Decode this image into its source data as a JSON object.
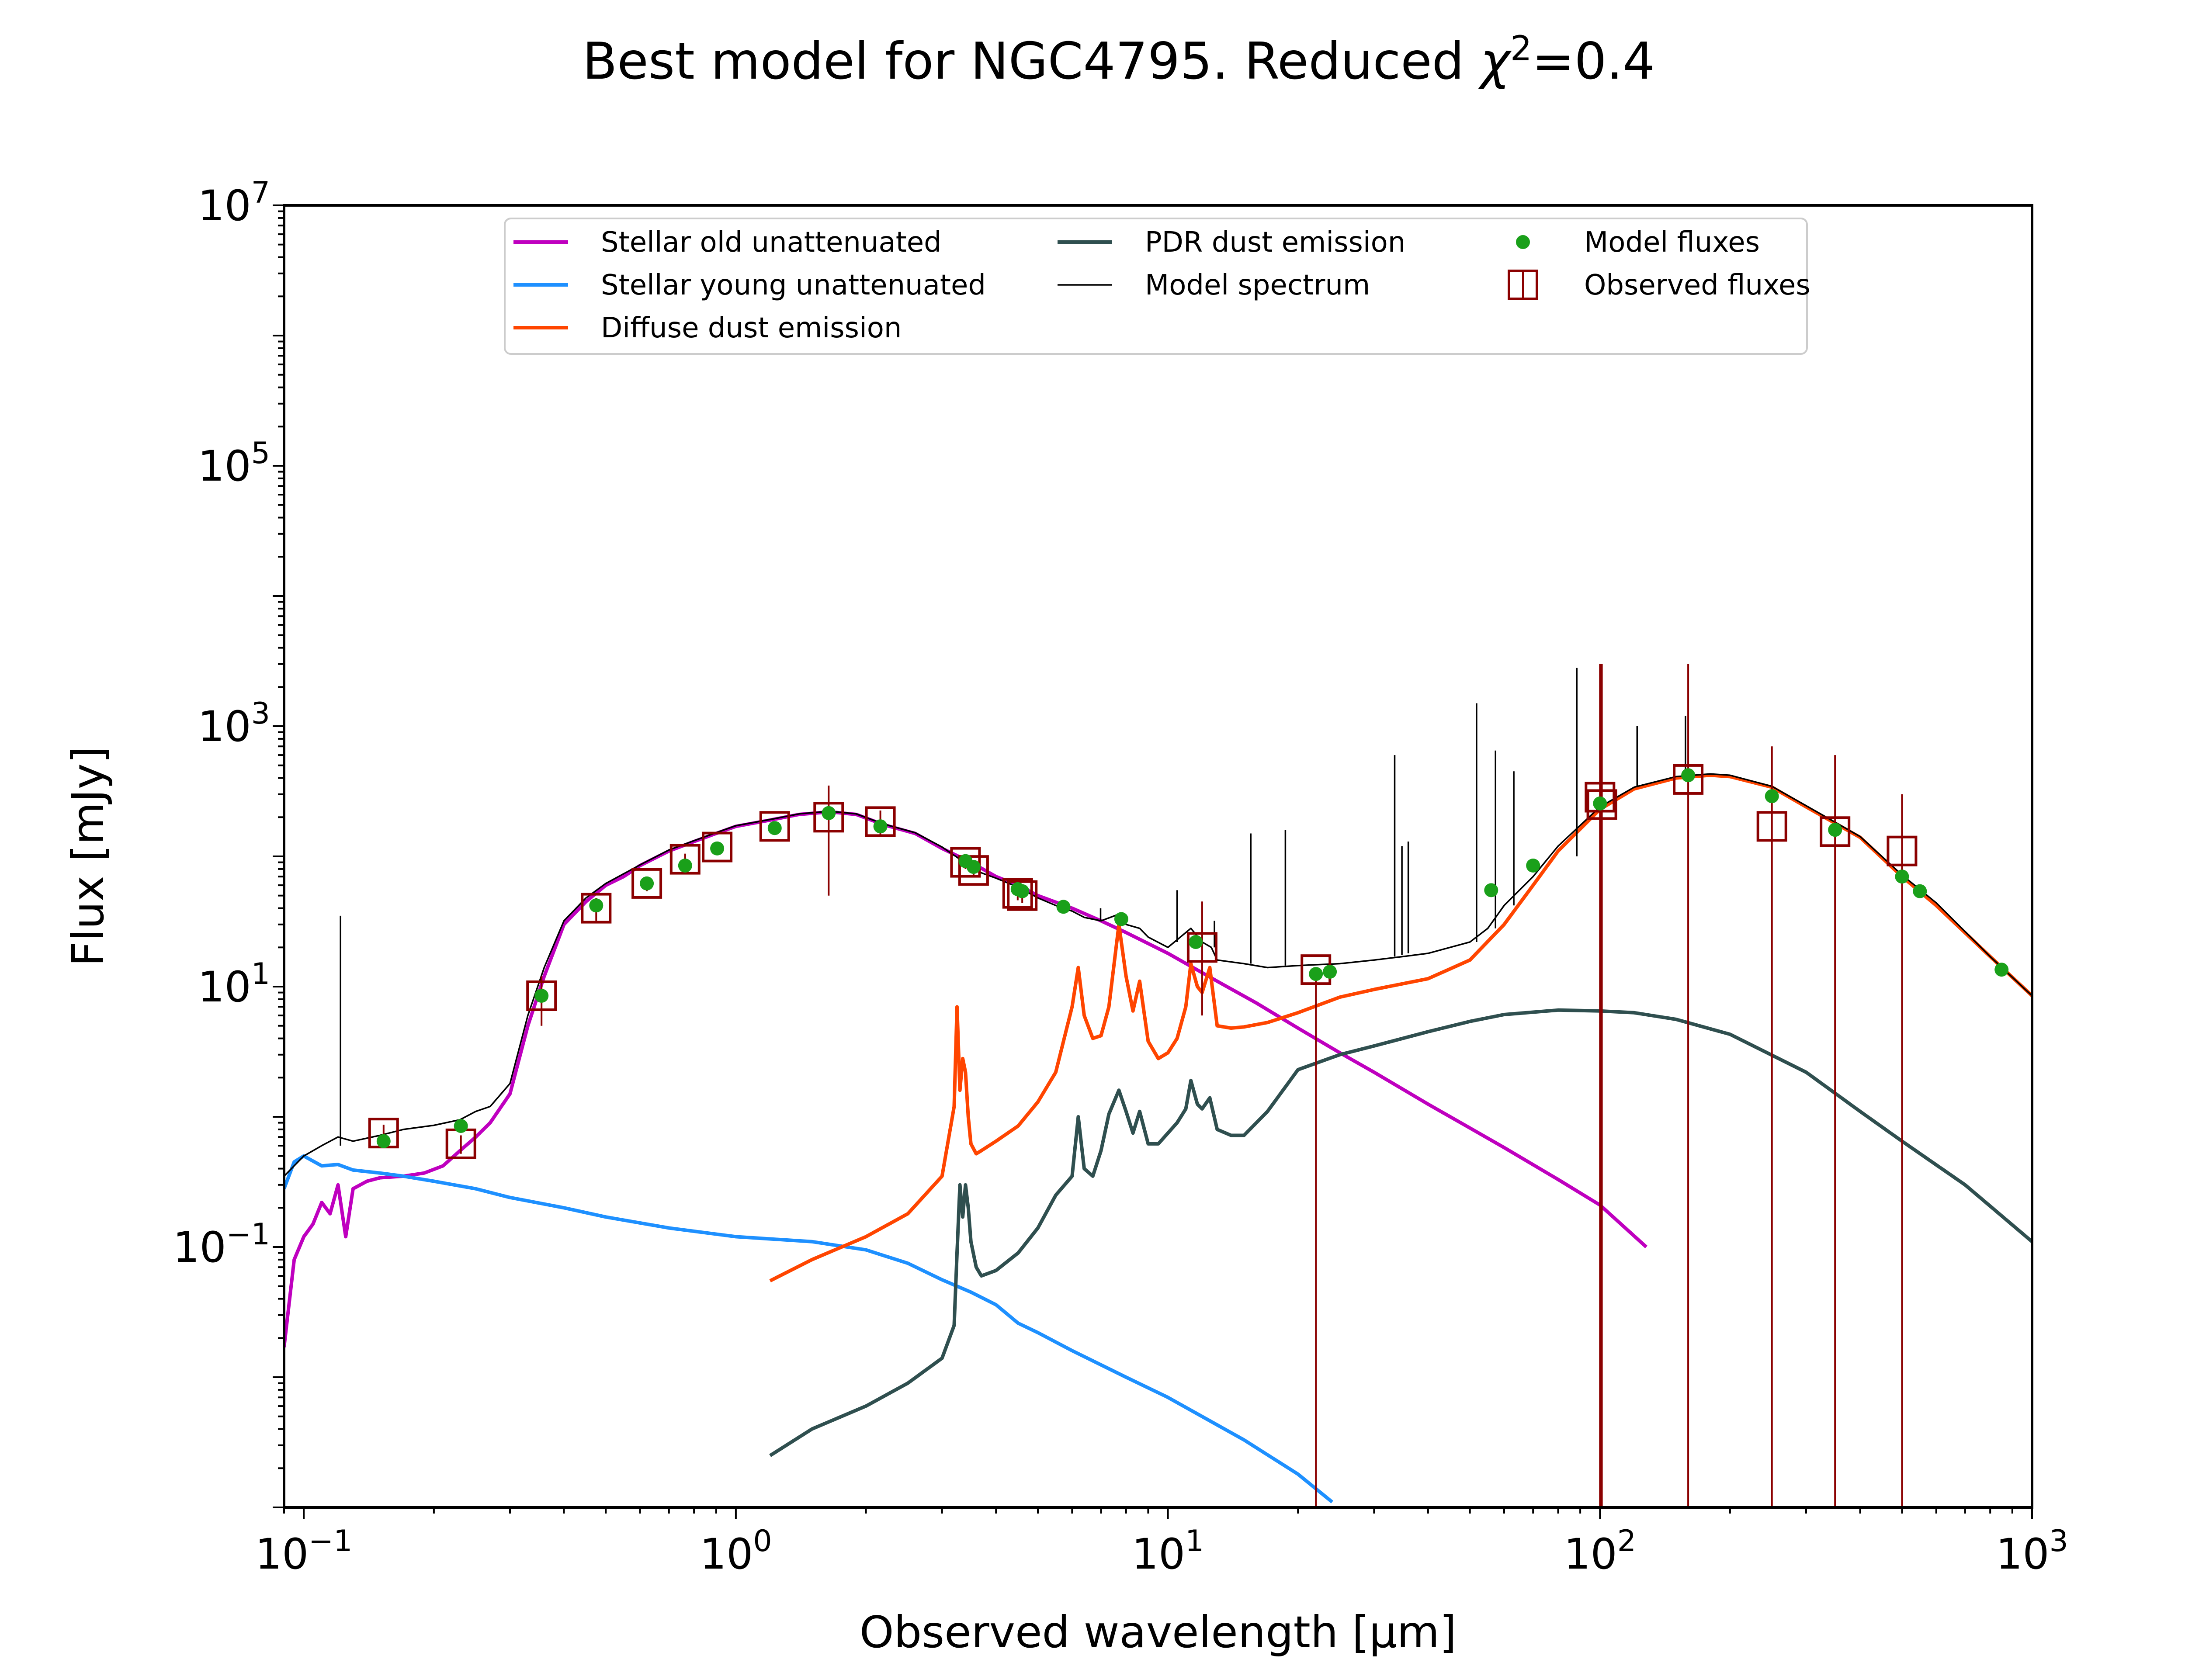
{
  "chart_data": {
    "type": "line",
    "title": "Best model for NGC4795. Reduced χ²=0.4",
    "title_parts": {
      "prefix": "Best model for NGC4795. Reduced ",
      "chi": "χ",
      "sup": "2",
      "suffix": "=0.4"
    },
    "xlabel": "Observed wavelength [μm]",
    "ylabel": "Flux [mJy]",
    "xscale": "log",
    "yscale": "log",
    "xlim": [
      0.09,
      1000
    ],
    "ylim": [
      0.001,
      10000000
    ],
    "x_ticks": [
      {
        "value": 0.1,
        "base": "10",
        "exp": "−1"
      },
      {
        "value": 1,
        "base": "10",
        "exp": "0"
      },
      {
        "value": 10,
        "base": "10",
        "exp": "1"
      },
      {
        "value": 100,
        "base": "10",
        "exp": "2"
      },
      {
        "value": 1000,
        "base": "10",
        "exp": "3"
      }
    ],
    "y_ticks": [
      {
        "value": 0.1,
        "base": "10",
        "exp": "−1"
      },
      {
        "value": 10,
        "base": "10",
        "exp": "1"
      },
      {
        "value": 1000,
        "base": "10",
        "exp": "3"
      },
      {
        "value": 100000,
        "base": "10",
        "exp": "5"
      },
      {
        "value": 10000000,
        "base": "10",
        "exp": "7"
      }
    ],
    "grid": false,
    "legend_position": "top",
    "series": [
      {
        "name": "Stellar old unattenuated",
        "kind": "line",
        "color": "#bf00bf",
        "x": [
          0.09,
          0.095,
          0.1,
          0.105,
          0.11,
          0.115,
          0.12,
          0.125,
          0.13,
          0.14,
          0.15,
          0.17,
          0.19,
          0.21,
          0.23,
          0.25,
          0.27,
          0.3,
          0.33,
          0.36,
          0.4,
          0.45,
          0.5,
          0.55,
          0.6,
          0.7,
          0.8,
          0.9,
          1.0,
          1.2,
          1.4,
          1.65,
          1.9,
          2.2,
          2.6,
          3.0,
          3.5,
          4.0,
          4.5,
          5.0,
          6.0,
          7.0,
          8.0,
          10,
          13,
          16,
          20,
          25,
          30,
          40,
          50,
          60,
          80,
          100,
          128
        ],
        "y": [
          0.017,
          0.08,
          0.12,
          0.15,
          0.22,
          0.18,
          0.3,
          0.12,
          0.28,
          0.32,
          0.34,
          0.35,
          0.37,
          0.42,
          0.55,
          0.7,
          0.9,
          1.5,
          5.0,
          12,
          30,
          45,
          60,
          70,
          85,
          110,
          130,
          150,
          170,
          190,
          210,
          220,
          210,
          175,
          150,
          115,
          90,
          70,
          60,
          50,
          40,
          32,
          26,
          18,
          11,
          7.5,
          4.8,
          3.1,
          2.2,
          1.25,
          0.82,
          0.58,
          0.33,
          0.21,
          0.1
        ]
      },
      {
        "name": "Stellar young unattenuated",
        "kind": "line",
        "color": "#1e90ff",
        "x": [
          0.09,
          0.095,
          0.1,
          0.11,
          0.12,
          0.13,
          0.15,
          0.17,
          0.2,
          0.25,
          0.3,
          0.4,
          0.5,
          0.7,
          1.0,
          1.5,
          2.0,
          2.5,
          3.0,
          3.5,
          4.0,
          4.5,
          5.0,
          6.0,
          8.0,
          10,
          15,
          20,
          24
        ],
        "y": [
          0.28,
          0.45,
          0.5,
          0.42,
          0.43,
          0.39,
          0.37,
          0.35,
          0.32,
          0.28,
          0.24,
          0.2,
          0.17,
          0.14,
          0.12,
          0.11,
          0.095,
          0.075,
          0.056,
          0.045,
          0.036,
          0.026,
          0.022,
          0.016,
          0.01,
          0.007,
          0.0033,
          0.0018,
          0.0011
        ]
      },
      {
        "name": "Diffuse dust emission",
        "kind": "line",
        "color": "#ff4500",
        "x": [
          1.2,
          1.5,
          2.0,
          2.5,
          3.0,
          3.2,
          3.25,
          3.3,
          3.35,
          3.4,
          3.45,
          3.5,
          3.6,
          3.7,
          4.0,
          4.5,
          5.0,
          5.5,
          6.0,
          6.2,
          6.4,
          6.7,
          7.0,
          7.3,
          7.7,
          8.0,
          8.3,
          8.6,
          9.0,
          9.5,
          10.0,
          10.5,
          11.0,
          11.3,
          11.7,
          12.0,
          12.5,
          13.0,
          14.0,
          15,
          17,
          20,
          25,
          30,
          40,
          50,
          60,
          70,
          80,
          100,
          120,
          150,
          180,
          200,
          250,
          300,
          400,
          500,
          600,
          800,
          1000
        ],
        "y": [
          0.055,
          0.08,
          0.12,
          0.18,
          0.35,
          1.2,
          7.0,
          1.6,
          2.8,
          2.2,
          1.0,
          0.62,
          0.52,
          0.55,
          0.65,
          0.85,
          1.3,
          2.2,
          7.0,
          14,
          6.0,
          4.0,
          4.2,
          7.0,
          30,
          12,
          6.5,
          11,
          3.8,
          2.8,
          3.1,
          4.0,
          7.0,
          15,
          10,
          9.0,
          14,
          5.0,
          4.8,
          4.9,
          5.3,
          6.3,
          8.3,
          9.5,
          11.5,
          16,
          30,
          60,
          110,
          230,
          330,
          400,
          420,
          410,
          340,
          240,
          140,
          70,
          42,
          17,
          8.5
        ]
      },
      {
        "name": "PDR dust emission",
        "kind": "line",
        "color": "#2f4f4f",
        "x": [
          1.2,
          1.5,
          2.0,
          2.5,
          3.0,
          3.2,
          3.25,
          3.3,
          3.35,
          3.4,
          3.45,
          3.5,
          3.6,
          3.7,
          4.0,
          4.5,
          5.0,
          5.5,
          6.0,
          6.2,
          6.4,
          6.7,
          7.0,
          7.3,
          7.7,
          8.0,
          8.3,
          8.6,
          9.0,
          9.5,
          10.0,
          10.5,
          11.0,
          11.3,
          11.7,
          12.0,
          12.5,
          13.0,
          14.0,
          15,
          17,
          20,
          25,
          30,
          40,
          50,
          60,
          80,
          100,
          120,
          150,
          200,
          300,
          400,
          500,
          700,
          1000
        ],
        "y": [
          0.0025,
          0.004,
          0.006,
          0.009,
          0.014,
          0.025,
          0.09,
          0.3,
          0.17,
          0.3,
          0.2,
          0.11,
          0.07,
          0.06,
          0.066,
          0.09,
          0.14,
          0.25,
          0.35,
          1.0,
          0.4,
          0.35,
          0.55,
          1.05,
          1.6,
          1.1,
          0.75,
          1.1,
          0.62,
          0.62,
          0.75,
          0.9,
          1.15,
          1.9,
          1.25,
          1.15,
          1.4,
          0.8,
          0.72,
          0.72,
          1.1,
          2.3,
          3.0,
          3.5,
          4.5,
          5.4,
          6.1,
          6.6,
          6.5,
          6.3,
          5.6,
          4.3,
          2.2,
          1.1,
          0.65,
          0.3,
          0.11
        ]
      },
      {
        "name": "Model spectrum",
        "kind": "line",
        "color": "#000000",
        "x": [
          0.09,
          0.1,
          0.11,
          0.12,
          0.13,
          0.15,
          0.17,
          0.2,
          0.23,
          0.25,
          0.27,
          0.3,
          0.33,
          0.36,
          0.4,
          0.45,
          0.5,
          0.6,
          0.7,
          0.8,
          0.9,
          1.0,
          1.2,
          1.4,
          1.65,
          1.9,
          2.2,
          2.6,
          3.0,
          3.3,
          3.5,
          4.0,
          4.5,
          5.0,
          5.5,
          6.0,
          6.4,
          7.0,
          7.7,
          8.0,
          8.6,
          9.0,
          10,
          11.3,
          12.0,
          12.6,
          13,
          15,
          17,
          20,
          25,
          30,
          35,
          40,
          50,
          55,
          60,
          70,
          80,
          100,
          120,
          150,
          180,
          200,
          250,
          300,
          400,
          500,
          600,
          800,
          1000
        ],
        "y": [
          0.35,
          0.5,
          0.6,
          0.7,
          0.65,
          0.72,
          0.8,
          0.86,
          0.95,
          1.1,
          1.2,
          1.8,
          6.0,
          14,
          32,
          48,
          62,
          86,
          112,
          132,
          152,
          172,
          192,
          212,
          222,
          212,
          177,
          152,
          118,
          95,
          80,
          68,
          58,
          48,
          42,
          38,
          34,
          32,
          36,
          30,
          28,
          24,
          20,
          28,
          22,
          20,
          16,
          15,
          14,
          14.5,
          15,
          16,
          17,
          18,
          22,
          28,
          42,
          70,
          120,
          240,
          340,
          410,
          430,
          420,
          345,
          245,
          142,
          72,
          44,
          17,
          8.5
        ]
      },
      {
        "name": "Model spectrum emission lines",
        "kind": "spikes",
        "color": "#000000",
        "x": [
          0.1216,
          6.985,
          10.5,
          12.81,
          15.55,
          18.7,
          33.48,
          34.8,
          36.0,
          51.8,
          57.3,
          63.18,
          88.36,
          121.9,
          157.7
        ],
        "y_base": [
          0.6,
          32,
          22,
          20,
          15,
          14.5,
          17,
          17.5,
          18,
          22,
          28,
          42,
          100,
          340,
          420
        ],
        "y_top": [
          35,
          40,
          55,
          32,
          150,
          160,
          600,
          120,
          130,
          1500,
          650,
          450,
          2800,
          1000,
          1200
        ]
      },
      {
        "name": "Model fluxes",
        "kind": "scatter",
        "color": "#1aa01a",
        "x": [
          0.153,
          0.231,
          0.355,
          0.475,
          0.622,
          0.763,
          0.905,
          1.23,
          1.64,
          2.16,
          3.4,
          3.55,
          4.49,
          4.6,
          5.73,
          7.8,
          11.6,
          22,
          23.7,
          56,
          70,
          100,
          160,
          250,
          350,
          500,
          550,
          850
        ],
        "y": [
          0.65,
          0.85,
          8.5,
          42,
          62,
          85,
          115,
          165,
          215,
          170,
          92,
          83,
          56,
          54,
          41,
          33,
          22,
          12.5,
          13,
          55,
          85,
          255,
          420,
          290,
          160,
          70,
          54,
          13.5
        ]
      },
      {
        "name": "Observed fluxes",
        "kind": "errorbar",
        "color": "#8b0000",
        "x": [
          0.153,
          0.231,
          0.355,
          0.475,
          0.622,
          0.763,
          0.905,
          1.23,
          1.64,
          2.16,
          3.4,
          3.55,
          4.49,
          4.6,
          12.0,
          22,
          100,
          101,
          160,
          250,
          350,
          500
        ],
        "y": [
          0.75,
          0.62,
          8.5,
          40,
          62,
          95,
          118,
          170,
          200,
          185,
          90,
          78,
          52,
          50,
          20,
          13.5,
          285,
          250,
          390,
          170,
          155,
          110
        ],
        "err_low": [
          0.12,
          0.1,
          3.5,
          8,
          8,
          10,
          10,
          12,
          150,
          40,
          10,
          8,
          6,
          6,
          14,
          13.499,
          284.999,
          249.999,
          389.999,
          169.999,
          154.999,
          109.999
        ],
        "err_high": [
          0.12,
          0.1,
          3.5,
          8,
          8,
          10,
          10,
          12,
          150,
          40,
          10,
          8,
          6,
          6,
          25,
          0,
          2715,
          2750,
          2610,
          530,
          445,
          190
        ]
      }
    ]
  },
  "legend": {
    "items": [
      {
        "label": "Stellar old unattenuated",
        "color": "#bf00bf",
        "kind": "line",
        "col": 0,
        "row": 0
      },
      {
        "label": "Stellar young unattenuated",
        "color": "#1e90ff",
        "kind": "line",
        "col": 0,
        "row": 1
      },
      {
        "label": "Diffuse dust emission",
        "color": "#ff4500",
        "kind": "line",
        "col": 0,
        "row": 2
      },
      {
        "label": "PDR dust emission",
        "color": "#2f4f4f",
        "kind": "line",
        "col": 1,
        "row": 0
      },
      {
        "label": "Model spectrum",
        "color": "#000000",
        "kind": "thinline",
        "col": 1,
        "row": 1
      },
      {
        "label": "Model fluxes",
        "color": "#1aa01a",
        "kind": "dot",
        "col": 2,
        "row": 0
      },
      {
        "label": "Observed fluxes",
        "color": "#8b0000",
        "kind": "square",
        "col": 2,
        "row": 1
      }
    ]
  }
}
